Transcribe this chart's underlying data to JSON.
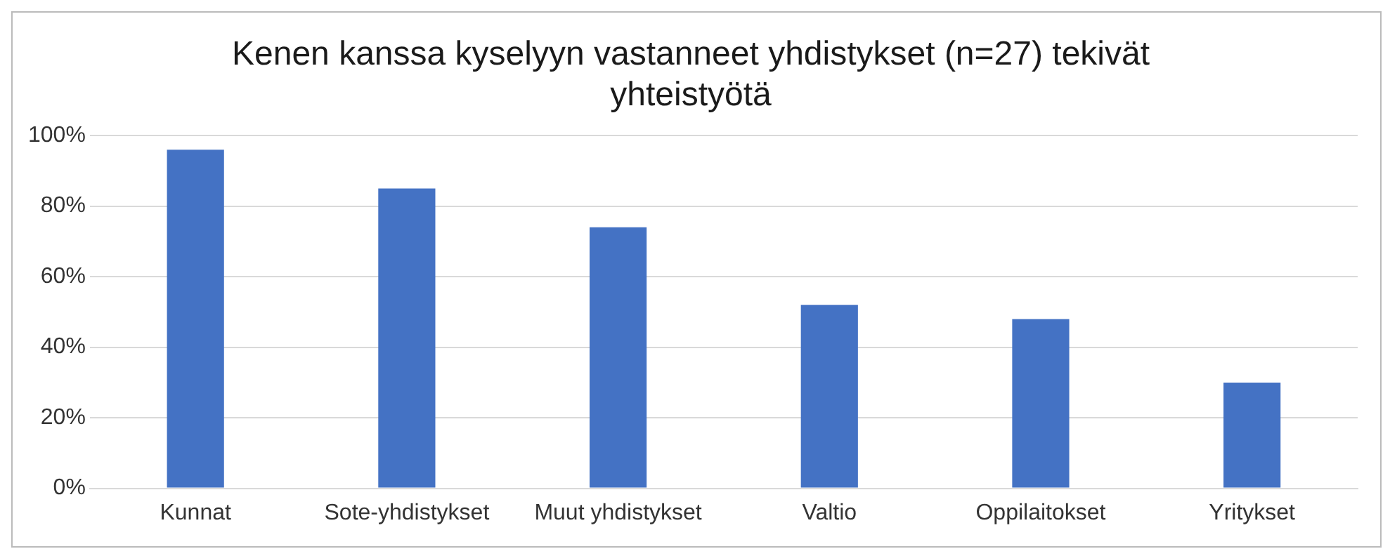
{
  "chart_data": {
    "type": "bar",
    "title": "Kenen kanssa kyselyyn vastanneet yhdistykset (n=27) tekivät yhteistyötä",
    "categories": [
      "Kunnat",
      "Sote-yhdistykset",
      "Muut yhdistykset",
      "Valtio",
      "Oppilaitokset",
      "Yritykset"
    ],
    "values": [
      96,
      85,
      74,
      52,
      48,
      30
    ],
    "color": "#4472c4",
    "ylim": [
      0,
      100
    ],
    "yticks": [
      {
        "value": 0,
        "label": "0%"
      },
      {
        "value": 20,
        "label": "20%"
      },
      {
        "value": 40,
        "label": "40%"
      },
      {
        "value": 60,
        "label": "60%"
      },
      {
        "value": 80,
        "label": "80%"
      },
      {
        "value": 100,
        "label": "100%"
      }
    ],
    "grid": "y",
    "legend": false
  }
}
